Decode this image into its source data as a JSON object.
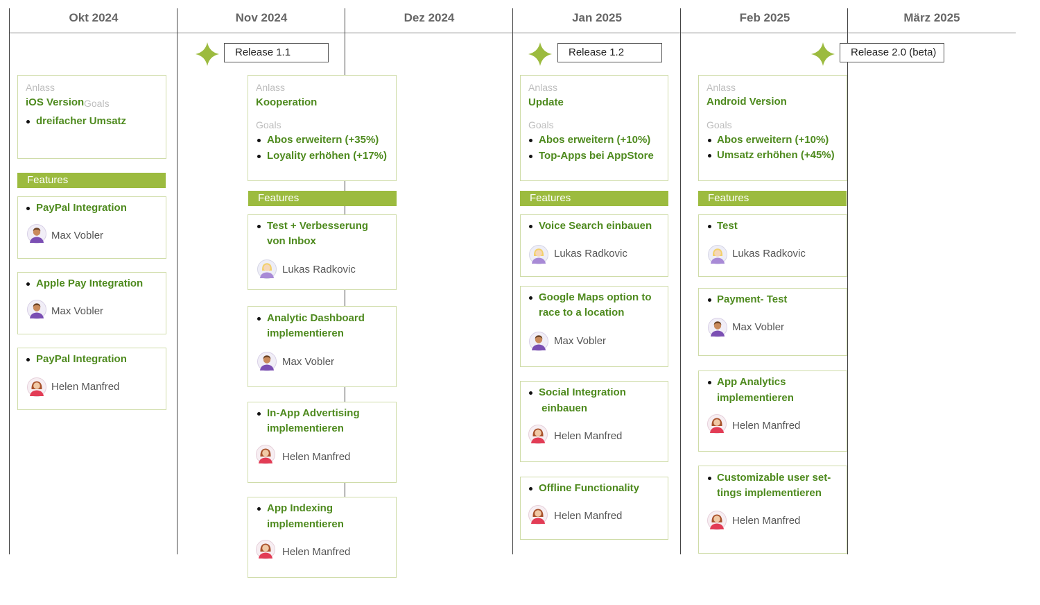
{
  "months": [
    "Okt 2024",
    "Nov 2024",
    "Dez 2024",
    "Jan 2025",
    "Feb 2025",
    "März 2025"
  ],
  "releases": [
    "Release 1.1",
    "Release 1.2",
    "Release 2.0 (beta)"
  ],
  "labels": {
    "anlass": "Anlass",
    "goals": "Goals",
    "features": "Features"
  },
  "columns": [
    {
      "anlass": "iOS Version",
      "goals": [
        "dreifacher Umsatz"
      ],
      "features": [
        {
          "title": [
            "PayPal Integration"
          ],
          "owner": "Max Vobler",
          "avatar": "male-avatar-icon"
        },
        {
          "title": [
            "Apple Pay Integration"
          ],
          "owner": "Max Vobler",
          "avatar": "male-avatar-icon"
        },
        {
          "title": [
            "PayPal Integration"
          ],
          "owner": "Helen Manfred",
          "avatar": "female-avatar-icon"
        }
      ]
    },
    {
      "anlass": "Kooperation",
      "goals": [
        "Abos erweitern (+35%)",
        "Loyality erhöhen (+17%)"
      ],
      "features": [
        {
          "title": [
            "Test + Verbesserung",
            "von Inbox"
          ],
          "owner": "Lukas Radkovic",
          "avatar": "blonde-avatar-icon"
        },
        {
          "title": [
            "Analytic Dashboard",
            "implementieren"
          ],
          "owner": "Max Vobler",
          "avatar": "male-avatar-icon"
        },
        {
          "title": [
            "In-App Advertising",
            "implementieren"
          ],
          "owner": "Helen Manfred",
          "avatar": "female-avatar-icon"
        },
        {
          "title": [
            "App Indexing",
            "implementieren"
          ],
          "owner": "Helen Manfred",
          "avatar": "female-avatar-icon"
        }
      ]
    },
    {
      "anlass": "Update",
      "goals": [
        "Abos erweitern (+10%)",
        "Top-Apps bei AppStore"
      ],
      "features": [
        {
          "title": [
            "Voice Search einbauen"
          ],
          "owner": "Lukas Radkovic",
          "avatar": "blonde-avatar-icon"
        },
        {
          "title": [
            "Google Maps option to",
            "race to a location"
          ],
          "owner": "Max Vobler",
          "avatar": "male-avatar-icon"
        },
        {
          "title": [
            "Social Integration",
            " einbauen"
          ],
          "owner": "Helen Manfred",
          "avatar": "female-avatar-icon"
        },
        {
          "title": [
            "Offline Functionality"
          ],
          "owner": "Helen Manfred",
          "avatar": "female-avatar-icon"
        }
      ]
    },
    {
      "anlass": "Android Version",
      "goals": [
        "Abos erweitern (+10%)",
        "Umsatz erhöhen (+45%)"
      ],
      "features": [
        {
          "title": [
            "Test"
          ],
          "owner": "Lukas Radkovic",
          "avatar": "blonde-avatar-icon"
        },
        {
          "title": [
            "Payment- Test"
          ],
          "owner": "Max Vobler",
          "avatar": "male-avatar-icon"
        },
        {
          "title": [
            "App Analytics",
            "implementieren"
          ],
          "owner": "Helen Manfred",
          "avatar": "female-avatar-icon"
        },
        {
          "title": [
            "Customizable user set-",
            "tings implementieren"
          ],
          "owner": "Helen Manfred",
          "avatar": "female-avatar-icon"
        }
      ]
    }
  ],
  "colors": {
    "accent": "#9cbb3f",
    "text_green": "#4e8a1e",
    "card_border": "#cfdca8"
  }
}
